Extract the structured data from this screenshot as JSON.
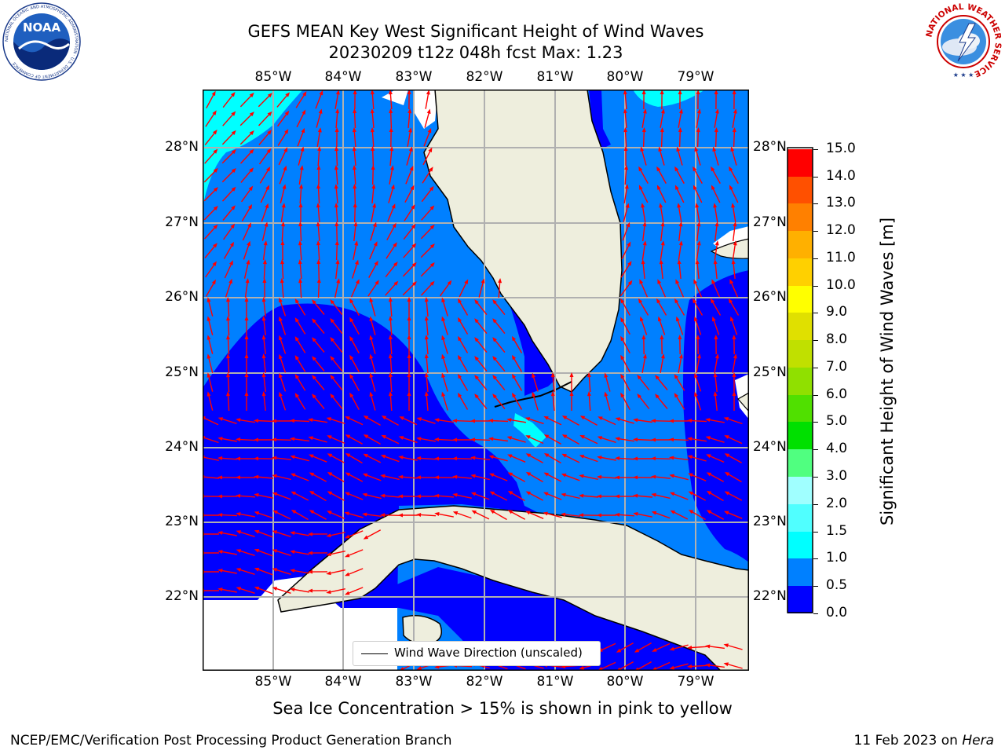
{
  "header": {
    "title_line1": "GEFS MEAN Key West Significant Height of Wind Waves",
    "title_line2": "20230209 t12z 048h fcst   Max: 1.23"
  },
  "logos": {
    "noaa_text": "NOAA",
    "noaa_ring": "NATIONAL OCEANIC AND ATMOSPHERIC ADMINISTRATION · U.S. DEPARTMENT OF COMMERCE",
    "nws_ring": "NATIONAL WEATHER SERVICE"
  },
  "map": {
    "lon_labels": [
      "85°W",
      "84°W",
      "83°W",
      "82°W",
      "81°W",
      "80°W",
      "79°W"
    ],
    "lat_labels": [
      "28°N",
      "27°N",
      "26°N",
      "25°N",
      "24°N",
      "23°N",
      "22°N"
    ],
    "legend_label": "Wind Wave Direction (unscaled)",
    "colors": {
      "ocean_0": "#0000ff",
      "ocean_05": "#0080ff",
      "ocean_10": "#00ffff",
      "land": "#eeeedd",
      "arrow": "#ff0000",
      "grid": "#b0b0b0"
    }
  },
  "colorbar": {
    "label": "Significant Height of Wind Waves [m]",
    "ticks": [
      "15.0",
      "14.0",
      "13.0",
      "12.0",
      "11.0",
      "10.0",
      "9.0",
      "8.0",
      "7.0",
      "6.0",
      "5.0",
      "4.0",
      "3.0",
      "2.0",
      "1.5",
      "1.0",
      "0.5",
      "0.0"
    ],
    "colors": [
      "#0000ff",
      "#0080ff",
      "#00ffff",
      "#50ffff",
      "#a0ffff",
      "#50ff80",
      "#00e000",
      "#50e000",
      "#90e000",
      "#c0e000",
      "#e0e000",
      "#ffff00",
      "#ffd000",
      "#ffb000",
      "#ff8000",
      "#ff5000",
      "#ff0000"
    ]
  },
  "subtitle": "Sea Ice Concentration > 15% is shown in pink to yellow",
  "footer": {
    "left": "NCEP/EMC/Verification Post Processing Product Generation Branch",
    "right_date": "11 Feb 2023 on ",
    "right_host": "Hera"
  }
}
